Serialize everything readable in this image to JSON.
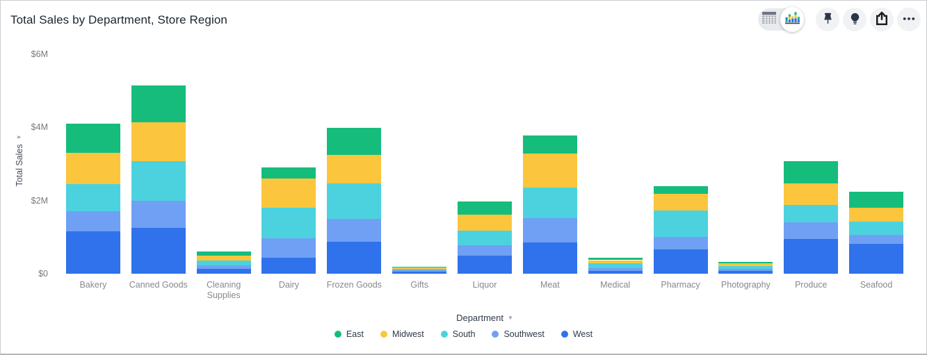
{
  "header": {
    "title": "Total Sales by Department, Store Region"
  },
  "toolbar": {
    "view_toggle": {
      "options": [
        "table-view",
        "chart-view"
      ],
      "selected": "chart-view"
    },
    "buttons": [
      "pin",
      "insights-lightbulb",
      "share",
      "more-options"
    ]
  },
  "colors": {
    "icon_dark": "#2c3547",
    "icon_black": "#15181c",
    "button_bg": "#f1f2f4",
    "toggle_bg": "#e8eaed"
  },
  "chart_data": {
    "type": "bar",
    "stacked": true,
    "title": "Total Sales by Department, Store Region",
    "xlabel": "Department",
    "ylabel": "Total Sales",
    "values_unit": "millions_usd",
    "ylim": [
      0,
      6
    ],
    "grid": false,
    "legend_position": "bottom",
    "y_ticks": [
      "$0",
      "$2M",
      "$4M",
      "$6M"
    ],
    "y_tick_values": [
      0,
      2,
      4,
      6
    ],
    "categories": [
      "Bakery",
      "Canned Goods",
      "Cleaning Supplies",
      "Dairy",
      "Frozen Goods",
      "Gifts",
      "Liquor",
      "Meat",
      "Medical",
      "Pharmacy",
      "Photography",
      "Produce",
      "Seafood"
    ],
    "series": [
      {
        "name": "East",
        "color": "#16bc7c",
        "values": [
          0.8,
          1.01,
          0.12,
          0.3,
          0.74,
          0.02,
          0.36,
          0.49,
          0.07,
          0.21,
          0.03,
          0.61,
          0.44
        ]
      },
      {
        "name": "Midwest",
        "color": "#fbc63d",
        "values": [
          0.85,
          1.06,
          0.13,
          0.8,
          0.78,
          0.04,
          0.44,
          0.93,
          0.09,
          0.47,
          0.08,
          0.59,
          0.38
        ]
      },
      {
        "name": "South",
        "color": "#4cd2de",
        "values": [
          0.75,
          1.08,
          0.13,
          0.83,
          0.97,
          0.04,
          0.4,
          0.85,
          0.13,
          0.72,
          0.08,
          0.47,
          0.36
        ]
      },
      {
        "name": "Southwest",
        "color": "#70a0f3",
        "values": [
          0.55,
          0.74,
          0.1,
          0.53,
          0.63,
          0.04,
          0.28,
          0.66,
          0.07,
          0.34,
          0.05,
          0.45,
          0.25
        ]
      },
      {
        "name": "West",
        "color": "#2f72eb",
        "values": [
          1.15,
          1.25,
          0.13,
          0.44,
          0.87,
          0.05,
          0.49,
          0.85,
          0.08,
          0.66,
          0.08,
          0.95,
          0.81
        ]
      }
    ],
    "stack_order_bottom_to_top": [
      "West",
      "Southwest",
      "South",
      "Midwest",
      "East"
    ],
    "totals": [
      4.1,
      5.14,
      0.61,
      2.9,
      3.99,
      0.19,
      1.97,
      3.78,
      0.44,
      2.4,
      0.32,
      3.07,
      2.24
    ]
  }
}
